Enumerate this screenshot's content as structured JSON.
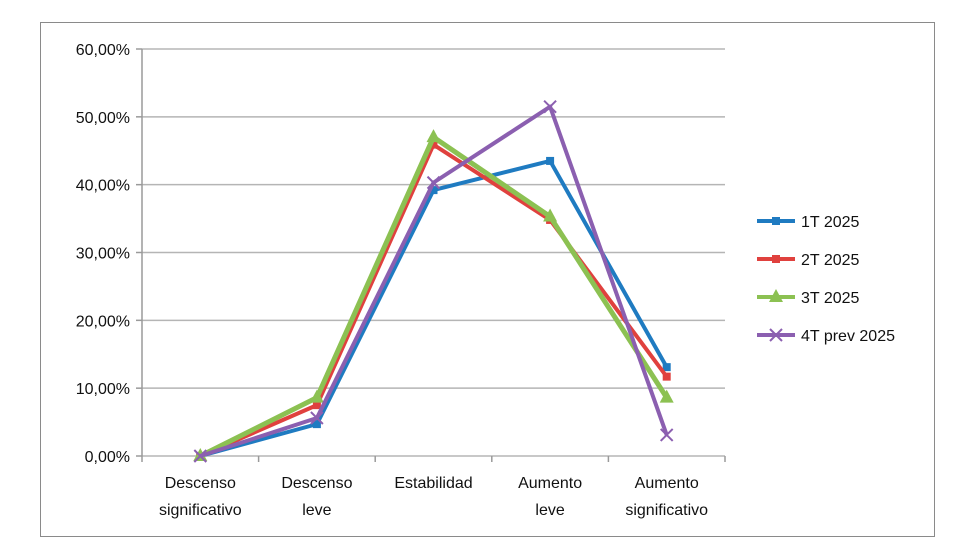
{
  "chart_data": {
    "type": "line",
    "categories": [
      [
        "Descenso",
        "significativo"
      ],
      [
        "Descenso",
        "leve"
      ],
      [
        "Estabilidad"
      ],
      [
        "Aumento",
        "leve"
      ],
      [
        "Aumento",
        "significativo"
      ]
    ],
    "ylim": [
      0,
      60
    ],
    "ytick_labels": [
      "0,00%",
      "10,00%",
      "20,00%",
      "30,00%",
      "40,00%",
      "50,00%",
      "60,00%"
    ],
    "grid": true,
    "legend_position": "right",
    "series": [
      {
        "name": "1T 2025",
        "color": "#1f7bc1",
        "marker": "square",
        "values": [
          0,
          4.7,
          39.2,
          43.5,
          13.1
        ]
      },
      {
        "name": "2T 2025",
        "color": "#e0413e",
        "marker": "square",
        "values": [
          0,
          7.5,
          45.9,
          34.8,
          11.7
        ]
      },
      {
        "name": "3T 2025",
        "color": "#8cc152",
        "marker": "triangle",
        "values": [
          0,
          8.6,
          47.0,
          35.3,
          8.6
        ]
      },
      {
        "name": "4T prev 2025",
        "color": "#8b5fb0",
        "marker": "x",
        "values": [
          0,
          5.6,
          40.3,
          51.5,
          3.1
        ]
      }
    ]
  }
}
